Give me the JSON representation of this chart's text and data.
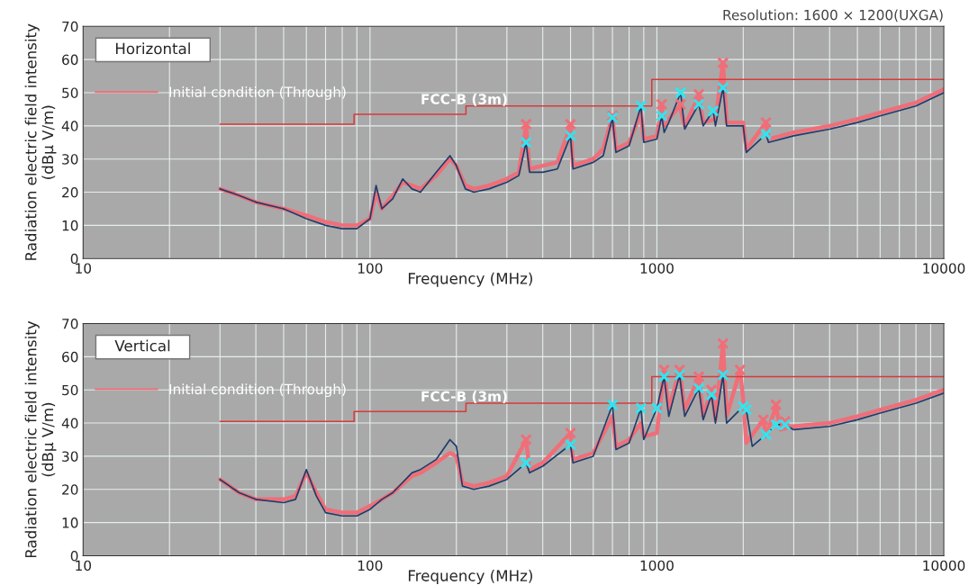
{
  "chart_data": [
    {
      "type": "line",
      "title": "Horizontal",
      "xlabel": "Frequency (MHz)",
      "ylabel": "Radiation electric field intensity\n(dBμ V/m)",
      "log": "x",
      "xlim": [
        10,
        10000
      ],
      "xticks": [
        10,
        100,
        1000,
        10000
      ],
      "ylim": [
        0,
        70
      ],
      "yticks": [
        0,
        10,
        20,
        30,
        40,
        50,
        60,
        70
      ],
      "grid": true,
      "legend": "top left",
      "marker": "none",
      "annotations": [
        "Resolution: 1600 × 1200(UXGA)",
        {
          "text": "FCC-B (3m)",
          "x": 150,
          "y": 43.5
        }
      ],
      "series": [
        {
          "name": "Initial condition (Through)",
          "color": "#f06e78",
          "x": [
            30,
            35,
            40,
            50,
            60,
            70,
            80,
            90,
            100,
            105,
            110,
            120,
            130,
            140,
            150,
            170,
            190,
            200,
            215,
            230,
            260,
            300,
            330,
            350,
            360,
            400,
            450,
            500,
            510,
            600,
            650,
            700,
            720,
            800,
            880,
            900,
            1000,
            1040,
            1060,
            1100,
            1200,
            1250,
            1400,
            1450,
            1600,
            1700,
            1750,
            2000,
            2050,
            2400,
            2450,
            3000,
            4000,
            5000,
            6000,
            8000,
            10000
          ],
          "values": [
            21,
            19,
            17,
            15,
            13,
            11,
            10,
            10,
            12,
            20,
            15,
            19,
            23,
            22,
            21,
            25,
            30,
            28,
            22,
            21,
            22,
            24,
            26,
            40,
            27,
            28,
            29,
            40,
            28,
            30,
            33,
            43,
            33,
            35,
            44,
            36,
            37,
            46,
            40,
            42,
            46,
            40,
            49,
            41,
            42,
            59,
            41,
            41,
            33,
            41,
            36,
            38,
            40,
            42,
            44,
            47,
            51
          ]
        },
        {
          "color": "#1d3d6b",
          "x": [
            30,
            35,
            40,
            50,
            60,
            70,
            80,
            90,
            100,
            105,
            110,
            120,
            130,
            140,
            150,
            170,
            190,
            200,
            215,
            230,
            260,
            300,
            330,
            350,
            360,
            400,
            450,
            500,
            510,
            600,
            650,
            700,
            720,
            800,
            880,
            900,
            1000,
            1040,
            1060,
            1100,
            1210,
            1250,
            1400,
            1450,
            1570,
            1600,
            1700,
            1750,
            2000,
            2050,
            2400,
            2450,
            3000,
            4000,
            5000,
            6000,
            8000,
            10000
          ],
          "values": [
            21,
            19,
            17,
            15,
            12,
            10,
            9,
            9,
            12,
            22,
            15,
            18,
            24,
            21,
            20,
            26,
            31,
            28,
            21,
            20,
            21,
            23,
            25,
            35,
            26,
            26,
            27,
            37,
            27,
            29,
            31,
            42.5,
            32,
            34,
            46,
            35,
            36,
            43,
            38,
            41,
            50,
            39,
            46.5,
            40,
            44.5,
            40,
            51.5,
            40,
            40,
            32,
            37.5,
            35,
            37,
            39,
            41,
            43,
            46,
            50
          ]
        },
        {
          "type": "step",
          "color": "#d83a3a",
          "x": [
            30,
            88,
            216,
            960,
            10000
          ],
          "values": [
            40.5,
            43.5,
            46,
            54,
            54
          ]
        },
        {
          "type": "scatter",
          "marker": "cross",
          "color": "#f06e78",
          "x": [
            350,
            500,
            700,
            1040,
            1210,
            1400,
            1700,
            2400
          ],
          "values": [
            40.5,
            40.5,
            43,
            46.5,
            46.5,
            49.5,
            59,
            41
          ]
        },
        {
          "type": "scatter",
          "marker": "cross",
          "color": "#33e4ee",
          "x": [
            350,
            500,
            700,
            880,
            1040,
            1210,
            1400,
            1570,
            1700,
            2400
          ],
          "values": [
            35,
            37,
            42.5,
            46,
            43,
            50,
            46.5,
            44.5,
            51.5,
            37.5
          ]
        }
      ]
    },
    {
      "type": "line",
      "title": "Vertical",
      "xlabel": "Frequency (MHz)",
      "ylabel": "Radiation electric field intensity\n(dBμ V/m)",
      "log": "x",
      "xlim": [
        10,
        10000
      ],
      "xticks": [
        10,
        100,
        1000,
        10000
      ],
      "ylim": [
        0,
        70
      ],
      "yticks": [
        0,
        10,
        20,
        30,
        40,
        50,
        60,
        70
      ],
      "grid": true,
      "legend": "top left",
      "marker": "none",
      "annotations": [
        {
          "text": "FCC-B (3m)",
          "x": 150,
          "y": 43.5
        }
      ],
      "series": [
        {
          "name": "Initial condition (Through)",
          "color": "#f06e78",
          "x": [
            30,
            35,
            40,
            50,
            55,
            60,
            65,
            70,
            80,
            90,
            100,
            110,
            120,
            140,
            150,
            170,
            190,
            200,
            210,
            230,
            260,
            300,
            350,
            360,
            400,
            500,
            510,
            600,
            700,
            720,
            800,
            880,
            900,
            1000,
            1060,
            1100,
            1200,
            1250,
            1400,
            1450,
            1550,
            1600,
            1700,
            1750,
            1950,
            2000,
            2050,
            2350,
            2400,
            2600,
            2700,
            3000,
            4000,
            5000,
            6000,
            8000,
            10000
          ],
          "values": [
            23,
            19,
            17,
            17,
            18,
            25,
            19,
            14,
            13,
            13,
            15,
            17,
            19,
            24,
            25,
            28,
            31,
            30,
            22,
            21,
            22,
            24,
            35,
            26,
            28,
            37,
            29,
            31,
            42,
            33,
            35,
            40,
            36,
            37,
            56,
            44,
            56,
            44,
            54,
            42,
            50,
            41,
            64,
            42,
            56,
            47,
            34,
            41,
            36,
            45,
            38,
            39,
            40,
            42,
            44,
            47,
            50
          ]
        },
        {
          "color": "#1d3d6b",
          "x": [
            30,
            35,
            40,
            50,
            55,
            60,
            65,
            70,
            80,
            90,
            100,
            110,
            120,
            140,
            150,
            170,
            190,
            200,
            210,
            230,
            260,
            300,
            350,
            360,
            400,
            500,
            510,
            600,
            700,
            720,
            800,
            880,
            900,
            1000,
            1060,
            1100,
            1200,
            1250,
            1400,
            1450,
            1550,
            1600,
            1700,
            1750,
            2000,
            2050,
            2150,
            2400,
            2600,
            2800,
            3000,
            4000,
            5000,
            6000,
            8000,
            10000
          ],
          "values": [
            23,
            19,
            17,
            16,
            17,
            26,
            18,
            13,
            12,
            12,
            14,
            17,
            19,
            25,
            26,
            29,
            35,
            33,
            21,
            20,
            21,
            23,
            28,
            25,
            27,
            33.5,
            28,
            30,
            45.5,
            32,
            34,
            44.5,
            35,
            44.5,
            54,
            42,
            54.5,
            42,
            50.5,
            41,
            48.5,
            40,
            54.5,
            40,
            45,
            44,
            33,
            36.5,
            39.5,
            39.5,
            38,
            39,
            41,
            43,
            46,
            49
          ]
        },
        {
          "type": "step",
          "color": "#d83a3a",
          "x": [
            30,
            88,
            216,
            960,
            10000
          ],
          "values": [
            40.5,
            43.5,
            46,
            54,
            54
          ]
        },
        {
          "type": "scatter",
          "marker": "cross",
          "color": "#f06e78",
          "x": [
            350,
            500,
            1060,
            1200,
            1400,
            1550,
            1700,
            1950,
            2350,
            2600,
            2800
          ],
          "values": [
            35,
            37,
            56,
            56,
            54,
            50,
            64,
            56,
            41,
            45.5,
            40.5
          ]
        },
        {
          "type": "scatter",
          "marker": "cross",
          "color": "#33e4ee",
          "x": [
            350,
            500,
            700,
            880,
            1000,
            1060,
            1200,
            1400,
            1550,
            1700,
            2000,
            2050,
            2400,
            2600,
            2800
          ],
          "values": [
            28,
            33.5,
            45.5,
            44.5,
            44.5,
            54,
            54.5,
            50.5,
            48.5,
            54.5,
            45,
            44,
            36.5,
            39.5,
            39.5
          ]
        }
      ]
    }
  ]
}
